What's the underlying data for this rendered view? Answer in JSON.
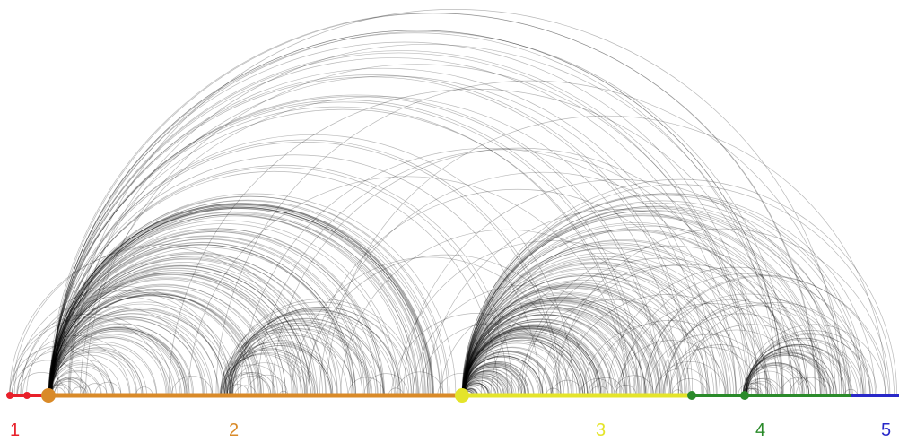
{
  "segments": [
    {
      "label": "1",
      "color": "#e8202a"
    },
    {
      "label": "2",
      "color": "#d98a28"
    },
    {
      "label": "3",
      "color": "#e4e42a"
    },
    {
      "label": "4",
      "color": "#2a8a2a"
    },
    {
      "label": "5",
      "color": "#2828c8"
    }
  ],
  "arc_color": "#000000",
  "background": "#ffffff"
}
